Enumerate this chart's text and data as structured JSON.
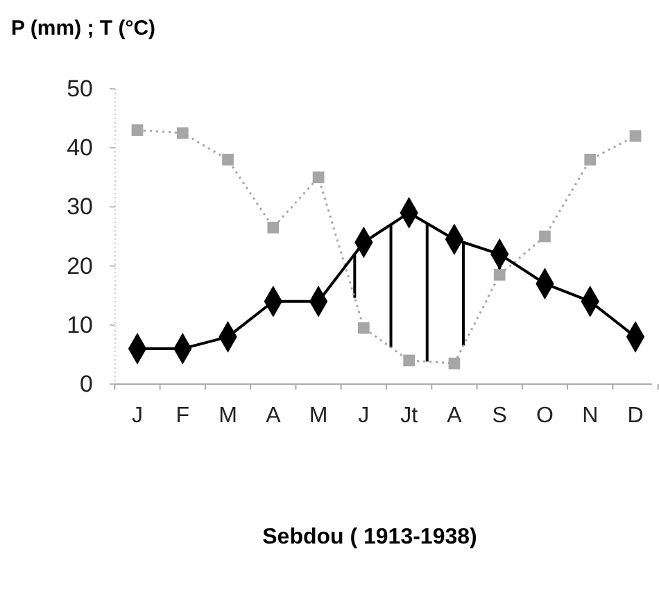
{
  "chart_data": {
    "type": "line",
    "title": "Sebdou ( 1913-1938)",
    "ylabel": "P (mm) ; T (°C)",
    "categories": [
      "J",
      "F",
      "M",
      "A",
      "M",
      "J",
      "Jt",
      "A",
      "S",
      "O",
      "N",
      "D"
    ],
    "ylim": [
      0,
      50
    ],
    "yticks": [
      0,
      10,
      20,
      30,
      40,
      50
    ],
    "grid": false,
    "series": [
      {
        "color": "#a6a6a6",
        "marker": "square",
        "line_style": "dotted",
        "values": [
          43,
          42.5,
          38,
          26.5,
          35,
          9.5,
          4,
          3.5,
          18.5,
          25,
          38,
          42
        ]
      },
      {
        "color": "#000000",
        "marker": "diamond",
        "line_style": "solid",
        "values": [
          6,
          6,
          8,
          14,
          14,
          24,
          29,
          24.5,
          22,
          17,
          14,
          8
        ]
      }
    ]
  }
}
